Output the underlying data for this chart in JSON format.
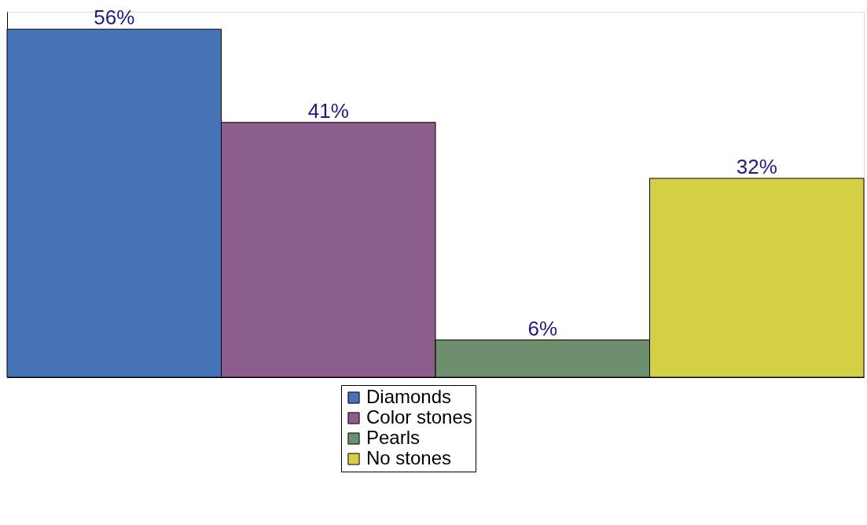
{
  "chart_data": {
    "type": "bar",
    "categories": [
      null
    ],
    "series": [
      {
        "name": "Diamonds",
        "color": "#4573b5",
        "values": [
          56
        ],
        "value_labels": [
          "56%"
        ]
      },
      {
        "name": "Color stones",
        "color": "#8b5e8b",
        "values": [
          41
        ],
        "value_labels": [
          "41%"
        ]
      },
      {
        "name": "Pearls",
        "color": "#6e8f6e",
        "values": [
          6
        ],
        "value_labels": [
          "6%"
        ]
      },
      {
        "name": "No stones",
        "color": "#d4d045",
        "values": [
          32
        ],
        "value_labels": [
          "32%"
        ]
      }
    ],
    "legend": "bottom",
    "grid": false
  }
}
